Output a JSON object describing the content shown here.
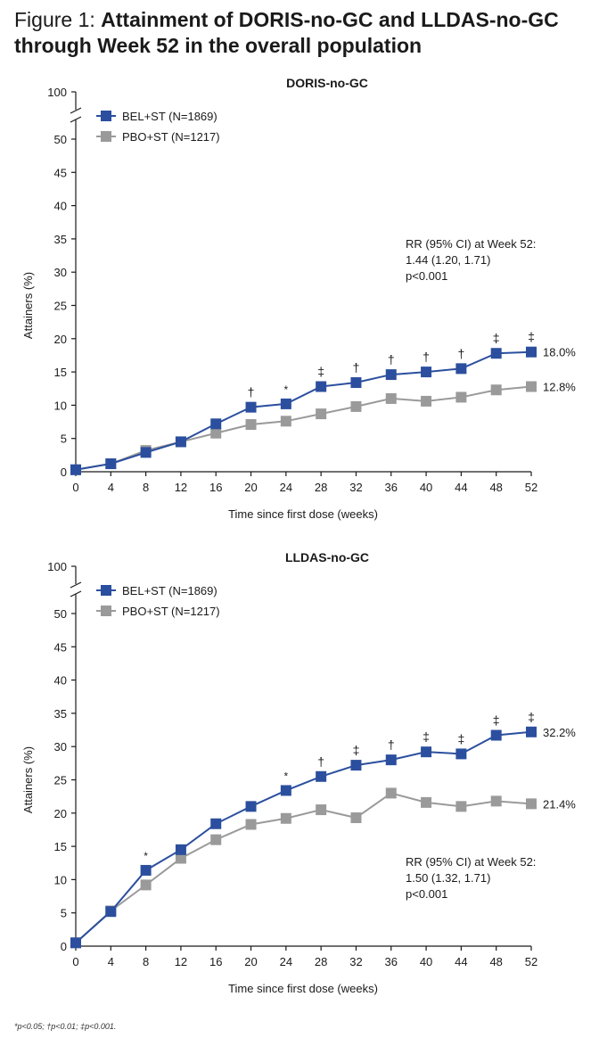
{
  "figure": {
    "label": "Figure 1:",
    "title": "Attainment of DORIS-no-GC and LLDAS-no-GC through Week 52 in the overall population"
  },
  "footnote": "*p<0.05; †p<0.01; ‡p<0.001.",
  "colors": {
    "bel": "#2b4f9e",
    "pbo": "#9a9a9a",
    "axis": "#1a1a1a"
  },
  "chart_data": [
    {
      "type": "line",
      "title": "DORIS-no-GC",
      "xlabel": "Time since first dose (weeks)",
      "ylabel": "Attainers (%)",
      "x": [
        0,
        4,
        8,
        12,
        16,
        20,
        24,
        28,
        32,
        36,
        40,
        44,
        48,
        52
      ],
      "yticks": [
        0,
        5,
        10,
        15,
        20,
        25,
        30,
        35,
        40,
        45,
        50
      ],
      "ybreak_label": "100",
      "ylim": [
        0,
        53
      ],
      "series": [
        {
          "name": "BEL+ST (N=1869)",
          "color": "#2b4f9e",
          "values": [
            0.3,
            1.2,
            2.9,
            4.5,
            7.2,
            9.7,
            10.2,
            12.8,
            13.4,
            14.6,
            15.0,
            15.5,
            17.8,
            18.0
          ],
          "end_label": "18.0%"
        },
        {
          "name": "PBO+ST (N=1217)",
          "color": "#9a9a9a",
          "values": [
            0.3,
            1.2,
            3.2,
            4.5,
            5.8,
            7.1,
            7.6,
            8.7,
            9.8,
            11.0,
            10.6,
            11.2,
            12.3,
            12.8
          ],
          "end_label": "12.8%"
        }
      ],
      "significance": [
        "",
        "",
        "",
        "",
        "",
        "†",
        "*",
        "‡",
        "†",
        "†",
        "†",
        "†",
        "‡",
        "‡"
      ],
      "annotation": [
        "RR (95% CI) at Week 52:",
        "1.44 (1.20, 1.71)",
        "p<0.001"
      ],
      "annotation_position": "upper-right"
    },
    {
      "type": "line",
      "title": "LLDAS-no-GC",
      "xlabel": "Time since first dose (weeks)",
      "ylabel": "Attainers (%)",
      "x": [
        0,
        4,
        8,
        12,
        16,
        20,
        24,
        28,
        32,
        36,
        40,
        44,
        48,
        52
      ],
      "yticks": [
        0,
        5,
        10,
        15,
        20,
        25,
        30,
        35,
        40,
        45,
        50
      ],
      "ybreak_label": "100",
      "ylim": [
        0,
        53
      ],
      "series": [
        {
          "name": "BEL+ST (N=1869)",
          "color": "#2b4f9e",
          "values": [
            0.5,
            5.2,
            11.4,
            14.5,
            18.4,
            21.0,
            23.4,
            25.5,
            27.2,
            28.0,
            29.2,
            28.9,
            31.7,
            32.2
          ],
          "end_label": "32.2%"
        },
        {
          "name": "PBO+ST (N=1217)",
          "color": "#9a9a9a",
          "values": [
            0.5,
            5.3,
            9.2,
            13.2,
            16.0,
            18.3,
            19.2,
            20.5,
            19.3,
            23.0,
            21.6,
            21.0,
            21.8,
            21.4
          ],
          "end_label": "21.4%"
        }
      ],
      "significance": [
        "",
        "",
        "*",
        "",
        "",
        "",
        "*",
        "†",
        "‡",
        "†",
        "‡",
        "‡",
        "‡",
        "‡"
      ],
      "annotation": [
        "RR (95% CI) at Week 52:",
        "1.50 (1.32, 1.71)",
        "p<0.001"
      ],
      "annotation_position": "lower-right"
    }
  ]
}
